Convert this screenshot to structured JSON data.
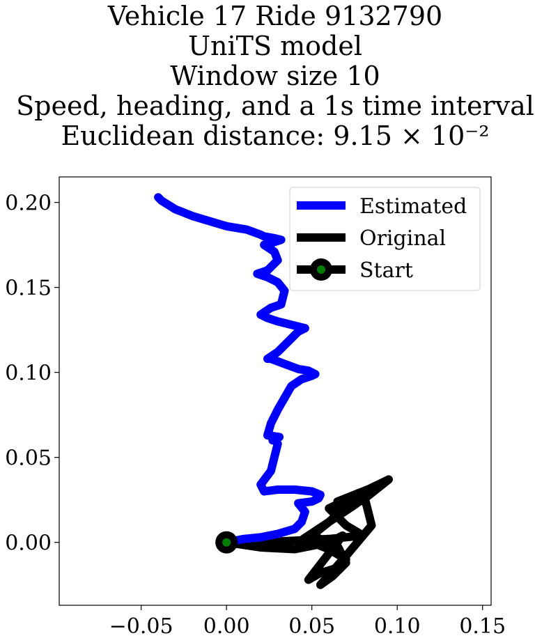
{
  "chart_data": {
    "type": "line",
    "title_lines": [
      "Vehicle 17 Ride 9132790",
      "UniTS model",
      "Window size 10",
      "Speed, heading, and a 1s time interval",
      "Euclidean distance: 9.15 × 10⁻²"
    ],
    "xlabel": "",
    "ylabel": "",
    "xlim": [
      -0.098,
      0.155
    ],
    "ylim": [
      -0.037,
      0.215
    ],
    "xticks": [
      -0.05,
      0.0,
      0.05,
      0.1,
      0.15
    ],
    "xtick_labels": [
      "−0.05",
      "0.00",
      "0.05",
      "0.10",
      "0.15"
    ],
    "yticks": [
      0.0,
      0.05,
      0.1,
      0.15,
      0.2
    ],
    "ytick_labels": [
      "0.00",
      "0.05",
      "0.10",
      "0.15",
      "0.20"
    ],
    "grid": false,
    "legend_position": "top-right",
    "series": [
      {
        "name": "Estimated",
        "color": "#0000ff",
        "x": [
          0.0,
          0.01,
          0.02,
          0.03,
          0.04,
          0.044,
          0.046,
          0.042,
          0.05,
          0.054,
          0.055,
          0.05,
          0.04,
          0.03,
          0.022,
          0.02,
          0.026,
          0.028,
          0.03,
          0.028,
          0.027,
          0.031,
          0.024,
          0.026,
          0.03,
          0.034,
          0.038,
          0.044,
          0.05,
          0.052,
          0.048,
          0.042,
          0.034,
          0.026,
          0.024,
          0.03,
          0.036,
          0.042,
          0.046,
          0.038,
          0.03,
          0.024,
          0.02,
          0.026,
          0.032,
          0.034,
          0.03,
          0.024,
          0.018,
          0.024,
          0.03,
          0.028,
          0.022,
          0.026,
          0.032,
          0.028,
          0.022,
          0.02,
          0.012,
          0.0,
          -0.01,
          -0.02,
          -0.03,
          -0.038,
          -0.04
        ],
        "y": [
          0.0,
          0.002,
          0.003,
          0.005,
          0.008,
          0.012,
          0.018,
          0.023,
          0.024,
          0.026,
          0.028,
          0.03,
          0.031,
          0.031,
          0.03,
          0.034,
          0.042,
          0.05,
          0.058,
          0.061,
          0.06,
          0.062,
          0.063,
          0.07,
          0.078,
          0.085,
          0.092,
          0.096,
          0.098,
          0.099,
          0.101,
          0.102,
          0.105,
          0.108,
          0.108,
          0.112,
          0.118,
          0.124,
          0.126,
          0.128,
          0.13,
          0.132,
          0.134,
          0.138,
          0.14,
          0.148,
          0.153,
          0.156,
          0.158,
          0.16,
          0.166,
          0.171,
          0.175,
          0.176,
          0.178,
          0.179,
          0.18,
          0.181,
          0.184,
          0.186,
          0.189,
          0.192,
          0.196,
          0.201,
          0.203
        ]
      },
      {
        "name": "Original",
        "color": "#000000",
        "x": [
          0.0,
          0.02,
          0.04,
          0.06,
          0.08,
          0.07,
          0.06,
          0.095,
          0.08,
          0.065,
          0.065,
          0.09,
          0.075,
          0.06,
          0.05,
          0.065,
          0.07,
          0.062,
          0.055,
          0.07,
          0.085,
          0.08,
          0.06,
          0.045,
          0.06,
          0.07,
          0.065,
          0.055,
          0.048,
          0.068,
          0.06,
          0.04,
          0.02,
          0.0
        ],
        "y": [
          0.0,
          0.0,
          0.001,
          0.002,
          0.004,
          0.01,
          0.02,
          0.037,
          0.025,
          0.018,
          0.024,
          0.034,
          0.022,
          0.012,
          0.004,
          -0.002,
          -0.012,
          -0.02,
          -0.025,
          -0.008,
          0.01,
          0.03,
          0.012,
          0.002,
          -0.004,
          -0.01,
          -0.015,
          -0.018,
          -0.022,
          0.004,
          0.0,
          -0.004,
          -0.003,
          0.0
        ]
      }
    ],
    "start_point": {
      "name": "Start",
      "x": 0.0,
      "y": 0.0,
      "face_color": "#008000",
      "edge_color": "#000000"
    }
  }
}
